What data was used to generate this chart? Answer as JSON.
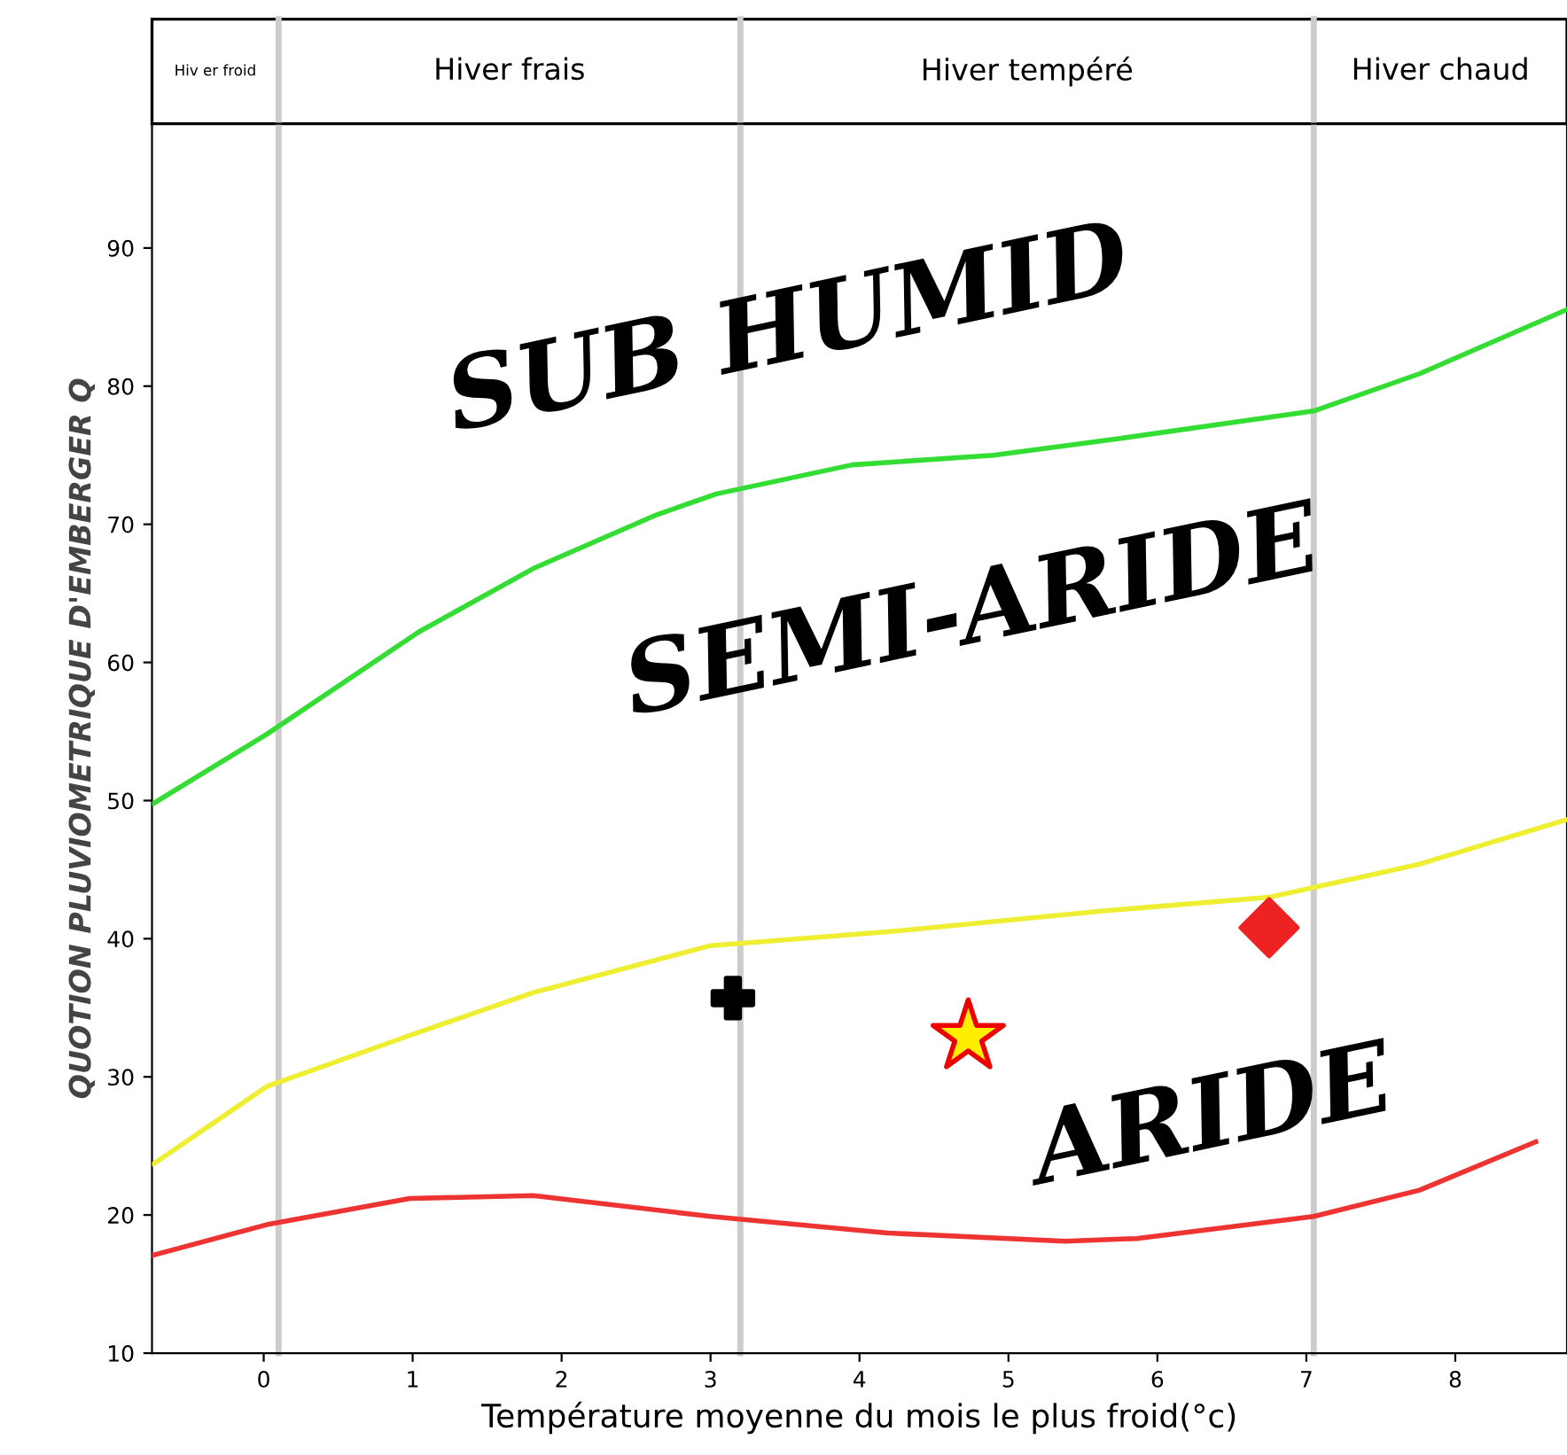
{
  "chart_data": {
    "type": "line",
    "xlabel": "Température moyenne du mois le plus froid(°c)",
    "ylabel": "QUOTION PLUVIOMETRIQUE D'EMBERGER Q",
    "xlim": [
      -0.75,
      8.75
    ],
    "xticks": [
      0,
      1,
      2,
      3,
      4,
      5,
      6,
      7,
      8
    ],
    "ylim": [
      10,
      99
    ],
    "yticks": [
      10,
      20,
      30,
      40,
      50,
      60,
      70,
      80,
      90
    ],
    "grid": false,
    "series": [
      {
        "color": "#33dd33",
        "x": [
          -0.74,
          0.02,
          1.04,
          1.81,
          2.64,
          3.04,
          3.95,
          4.9,
          5.74,
          7.05,
          7.76,
          8.74
        ],
        "values": [
          49.8,
          54.8,
          62.2,
          66.8,
          70.7,
          72.2,
          74.3,
          75,
          76.2,
          78.2,
          80.9,
          85.5
        ]
      },
      {
        "color": "#eeee33",
        "x": [
          -0.74,
          0.02,
          0.98,
          1.81,
          3,
          4.19,
          5.62,
          6.75,
          7.76,
          8.74
        ],
        "values": [
          23.7,
          29.3,
          33,
          36.1,
          39.5,
          40.5,
          42,
          43,
          45.4,
          48.6
        ]
      },
      {
        "color": "#ee3333",
        "x": [
          -0.74,
          0.02,
          0.98,
          1.81,
          3,
          4.19,
          5.38,
          5.86,
          7.05,
          7.76,
          8.54
        ],
        "values": [
          17.1,
          19.3,
          21.2,
          21.4,
          19.9,
          18.7,
          18.1,
          18.3,
          19.9,
          21.8,
          25.3
        ]
      },
      {
        "type": "scatter",
        "marker": "cross",
        "color": "#000000",
        "x": [
          3.15
        ],
        "values": [
          35.7
        ]
      },
      {
        "type": "scatter",
        "marker": "star",
        "color": "#ffee00",
        "x": [
          4.73
        ],
        "values": [
          32.9
        ]
      },
      {
        "type": "scatter",
        "marker": "diamond",
        "color": "#ee2222",
        "x": [
          6.75
        ],
        "values": [
          40.8
        ]
      }
    ],
    "ref_lines": [
      {
        "axis": "x",
        "value": 0.1,
        "color": "#cccccc"
      },
      {
        "axis": "x",
        "value": 3.2,
        "color": "#cccccc"
      },
      {
        "axis": "x",
        "value": 7.05,
        "color": "#cccccc"
      }
    ],
    "annotations": [
      "Hiv er froid",
      "Hiver frais",
      "Hiver tempéré",
      "Hiver chaud",
      "SUB HUMID",
      "SEMI-ARIDE",
      "ARIDE"
    ]
  }
}
